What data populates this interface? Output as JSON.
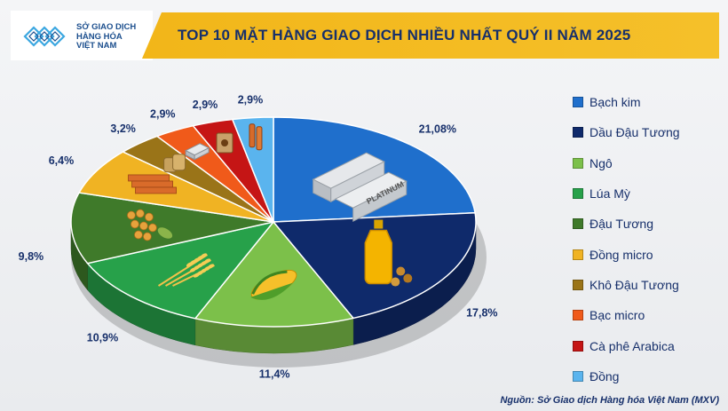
{
  "header": {
    "logo_lines": [
      "SỞ GIAO DỊCH",
      "HÀNG HÓA",
      "VIỆT NAM"
    ],
    "title": "TOP 10 MẶT HÀNG GIAO DỊCH NHIỀU NHẤT QUÝ II NĂM 2025"
  },
  "chart_data": {
    "type": "pie",
    "title": "TOP 10 MẶT HÀNG GIAO DỊCH NHIỀU NHẤT QUÝ II NĂM 2025",
    "legend_position": "right",
    "slices": [
      {
        "label": "Bạch kim",
        "value": 21.08,
        "display": "21,08%",
        "color": "#1f6fcc",
        "icon_text": "PLATINUM"
      },
      {
        "label": "Dầu Đậu Tương",
        "value": 17.8,
        "display": "17,8%",
        "color": "#0f2a6b"
      },
      {
        "label": "Ngô",
        "value": 11.4,
        "display": "11,4%",
        "color": "#7cc04a"
      },
      {
        "label": "Lúa Mỳ",
        "value": 10.9,
        "display": "10,9%",
        "color": "#27a14a"
      },
      {
        "label": "Đậu Tương",
        "value": 9.8,
        "display": "9,8%",
        "color": "#3f7a2a"
      },
      {
        "label": "Đồng micro",
        "value": 6.4,
        "display": "6,4%",
        "color": "#f0b323"
      },
      {
        "label": "Khô Đậu Tương",
        "value": 3.2,
        "display": "3,2%",
        "color": "#9a7418"
      },
      {
        "label": "Bạc micro",
        "value": 2.9,
        "display": "2,9%",
        "color": "#f05a1a"
      },
      {
        "label": "Cà phê Arabica",
        "value": 2.9,
        "display": "2,9%",
        "color": "#c51515"
      },
      {
        "label": "Đồng",
        "value": 2.9,
        "display": "2,9%",
        "color": "#5ab4ee"
      }
    ]
  },
  "footer": {
    "source": "Nguồn: Sở Giao dịch Hàng hóa Việt Nam (MXV)"
  }
}
